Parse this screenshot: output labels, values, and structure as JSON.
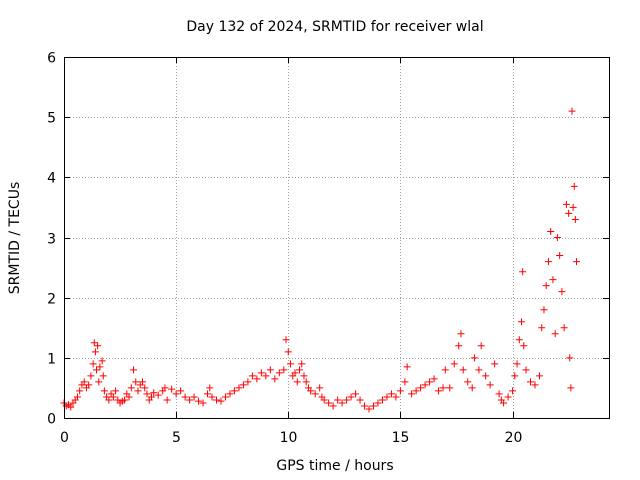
{
  "chart_data": {
    "type": "scatter",
    "title": "Day 132 of 2024, SRMTID for receiver wlal",
    "xlabel": "GPS time / hours",
    "ylabel": "SRMTID / TECUs",
    "xlim": [
      0,
      24.3
    ],
    "ylim": [
      0,
      6
    ],
    "xticks": [
      0,
      5,
      10,
      15,
      20
    ],
    "yticks": [
      0,
      1,
      2,
      3,
      4,
      5,
      6
    ],
    "grid": true,
    "marker": "plus",
    "color": "#ff0000",
    "series": [
      {
        "name": "SRMTID",
        "points": [
          [
            0.0,
            0.25
          ],
          [
            0.1,
            0.2
          ],
          [
            0.2,
            0.22
          ],
          [
            0.3,
            0.18
          ],
          [
            0.4,
            0.25
          ],
          [
            0.5,
            0.3
          ],
          [
            0.6,
            0.35
          ],
          [
            0.7,
            0.45
          ],
          [
            0.8,
            0.55
          ],
          [
            0.9,
            0.6
          ],
          [
            1.0,
            0.5
          ],
          [
            1.1,
            0.55
          ],
          [
            1.2,
            0.7
          ],
          [
            1.3,
            0.9
          ],
          [
            1.35,
            1.25
          ],
          [
            1.4,
            1.1
          ],
          [
            1.45,
            0.8
          ],
          [
            1.5,
            1.2
          ],
          [
            1.55,
            0.6
          ],
          [
            1.6,
            0.85
          ],
          [
            1.7,
            0.95
          ],
          [
            1.75,
            0.7
          ],
          [
            1.8,
            0.45
          ],
          [
            1.9,
            0.35
          ],
          [
            2.0,
            0.3
          ],
          [
            2.1,
            0.4
          ],
          [
            2.2,
            0.35
          ],
          [
            2.3,
            0.45
          ],
          [
            2.4,
            0.3
          ],
          [
            2.5,
            0.25
          ],
          [
            2.6,
            0.28
          ],
          [
            2.7,
            0.3
          ],
          [
            2.8,
            0.4
          ],
          [
            2.9,
            0.35
          ],
          [
            3.0,
            0.5
          ],
          [
            3.1,
            0.8
          ],
          [
            3.2,
            0.6
          ],
          [
            3.3,
            0.45
          ],
          [
            3.4,
            0.55
          ],
          [
            3.5,
            0.6
          ],
          [
            3.6,
            0.5
          ],
          [
            3.7,
            0.4
          ],
          [
            3.8,
            0.3
          ],
          [
            3.9,
            0.35
          ],
          [
            4.0,
            0.42
          ],
          [
            4.2,
            0.38
          ],
          [
            4.4,
            0.45
          ],
          [
            4.5,
            0.5
          ],
          [
            4.6,
            0.3
          ],
          [
            4.8,
            0.48
          ],
          [
            5.0,
            0.4
          ],
          [
            5.2,
            0.45
          ],
          [
            5.4,
            0.35
          ],
          [
            5.6,
            0.3
          ],
          [
            5.8,
            0.35
          ],
          [
            6.0,
            0.28
          ],
          [
            6.2,
            0.25
          ],
          [
            6.4,
            0.4
          ],
          [
            6.5,
            0.5
          ],
          [
            6.6,
            0.35
          ],
          [
            6.8,
            0.3
          ],
          [
            7.0,
            0.28
          ],
          [
            7.2,
            0.35
          ],
          [
            7.4,
            0.4
          ],
          [
            7.6,
            0.45
          ],
          [
            7.8,
            0.5
          ],
          [
            8.0,
            0.55
          ],
          [
            8.2,
            0.6
          ],
          [
            8.4,
            0.7
          ],
          [
            8.6,
            0.65
          ],
          [
            8.8,
            0.75
          ],
          [
            9.0,
            0.7
          ],
          [
            9.2,
            0.8
          ],
          [
            9.4,
            0.65
          ],
          [
            9.6,
            0.75
          ],
          [
            9.8,
            0.8
          ],
          [
            9.9,
            1.3
          ],
          [
            10.0,
            1.1
          ],
          [
            10.1,
            0.9
          ],
          [
            10.2,
            0.7
          ],
          [
            10.3,
            0.75
          ],
          [
            10.4,
            0.6
          ],
          [
            10.5,
            0.8
          ],
          [
            10.6,
            0.9
          ],
          [
            10.7,
            0.7
          ],
          [
            10.8,
            0.6
          ],
          [
            10.9,
            0.5
          ],
          [
            11.0,
            0.45
          ],
          [
            11.2,
            0.4
          ],
          [
            11.4,
            0.5
          ],
          [
            11.5,
            0.35
          ],
          [
            11.6,
            0.3
          ],
          [
            11.8,
            0.25
          ],
          [
            12.0,
            0.2
          ],
          [
            12.2,
            0.3
          ],
          [
            12.4,
            0.25
          ],
          [
            12.6,
            0.3
          ],
          [
            12.8,
            0.35
          ],
          [
            13.0,
            0.4
          ],
          [
            13.2,
            0.3
          ],
          [
            13.4,
            0.2
          ],
          [
            13.6,
            0.15
          ],
          [
            13.8,
            0.2
          ],
          [
            14.0,
            0.25
          ],
          [
            14.2,
            0.3
          ],
          [
            14.4,
            0.35
          ],
          [
            14.6,
            0.4
          ],
          [
            14.8,
            0.35
          ],
          [
            15.0,
            0.45
          ],
          [
            15.2,
            0.6
          ],
          [
            15.3,
            0.85
          ],
          [
            15.5,
            0.4
          ],
          [
            15.7,
            0.45
          ],
          [
            15.9,
            0.5
          ],
          [
            16.1,
            0.55
          ],
          [
            16.3,
            0.6
          ],
          [
            16.5,
            0.65
          ],
          [
            16.7,
            0.45
          ],
          [
            16.9,
            0.5
          ],
          [
            17.0,
            0.8
          ],
          [
            17.2,
            0.5
          ],
          [
            17.4,
            0.9
          ],
          [
            17.6,
            1.2
          ],
          [
            17.7,
            1.4
          ],
          [
            17.8,
            0.8
          ],
          [
            18.0,
            0.6
          ],
          [
            18.2,
            0.5
          ],
          [
            18.3,
            1.0
          ],
          [
            18.5,
            0.8
          ],
          [
            18.6,
            1.2
          ],
          [
            18.8,
            0.7
          ],
          [
            19.0,
            0.55
          ],
          [
            19.2,
            0.9
          ],
          [
            19.4,
            0.4
          ],
          [
            19.5,
            0.3
          ],
          [
            19.6,
            0.25
          ],
          [
            19.8,
            0.35
          ],
          [
            20.0,
            0.45
          ],
          [
            20.1,
            0.7
          ],
          [
            20.2,
            0.9
          ],
          [
            20.3,
            1.3
          ],
          [
            20.4,
            1.6
          ],
          [
            20.45,
            2.43
          ],
          [
            20.5,
            1.2
          ],
          [
            20.6,
            0.8
          ],
          [
            20.8,
            0.6
          ],
          [
            21.0,
            0.55
          ],
          [
            21.2,
            0.7
          ],
          [
            21.3,
            1.5
          ],
          [
            21.4,
            1.8
          ],
          [
            21.5,
            2.2
          ],
          [
            21.6,
            2.6
          ],
          [
            21.7,
            3.1
          ],
          [
            21.8,
            2.3
          ],
          [
            21.9,
            1.4
          ],
          [
            22.0,
            3.0
          ],
          [
            22.1,
            2.7
          ],
          [
            22.2,
            2.1
          ],
          [
            22.3,
            1.5
          ],
          [
            22.4,
            3.55
          ],
          [
            22.5,
            3.4
          ],
          [
            22.55,
            1.0
          ],
          [
            22.6,
            0.5
          ],
          [
            22.65,
            5.1
          ],
          [
            22.7,
            3.5
          ],
          [
            22.75,
            3.85
          ],
          [
            22.8,
            3.3
          ],
          [
            22.85,
            2.6
          ]
        ]
      }
    ]
  }
}
